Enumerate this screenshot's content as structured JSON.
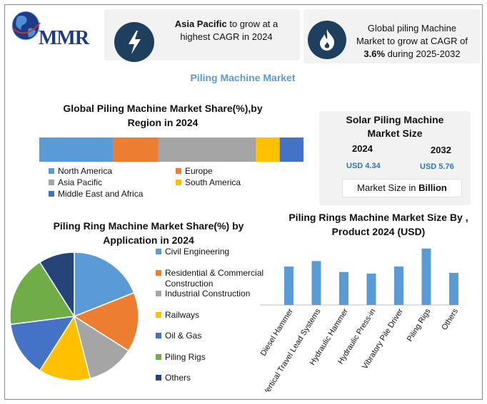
{
  "logo": {
    "text": "MMR"
  },
  "cards": {
    "card1": {
      "bold": "Asia Pacific",
      "rest1": " to grow at a",
      "line2": "highest CAGR in 2024"
    },
    "card2": {
      "line1": "Global piling Machine",
      "line2": "Market to grow at CAGR of",
      "bold": "3.6%",
      "rest3": " during 2025-2032"
    }
  },
  "main_title": "Piling Machine Market",
  "solar": {
    "title_line1": "Solar Piling Machine",
    "title_line2": "Market Size",
    "year1": "2024",
    "year2": "2032",
    "value1": "USD 4.34",
    "value2": "USD 5.76",
    "note_prefix": "Market Size in ",
    "note_bold": "Billion"
  },
  "colors": {
    "blue": "#5b9bd5",
    "orange": "#ed7d31",
    "gray": "#a5a5a5",
    "yellow": "#ffc000",
    "darkblue": "#4472c4",
    "green": "#70ad47",
    "navy": "#264478",
    "icon_bg": "#1f3f5f"
  },
  "icons": {
    "card1": "lightning-icon",
    "card2": "flame-icon",
    "logo": "globe-icon"
  },
  "chart_data": [
    {
      "type": "bar",
      "stacked": true,
      "orientation": "horizontal",
      "title_line1": "Global Piling Machine Market Share(%),by",
      "title_line2": "Region in 2024",
      "series": [
        {
          "name": "North America",
          "values": [
            28
          ],
          "color": "#5b9bd5"
        },
        {
          "name": "Europe",
          "values": [
            17
          ],
          "color": "#ed7d31"
        },
        {
          "name": "Asia Pacific",
          "values": [
            37
          ],
          "color": "#a5a5a5"
        },
        {
          "name": "South America",
          "values": [
            9
          ],
          "color": "#ffc000"
        },
        {
          "name": "Middle East and Africa",
          "values": [
            9
          ],
          "color": "#4472c4"
        }
      ],
      "legend": "bottom"
    },
    {
      "type": "pie",
      "title_line1": "Piling Ring Machine Market Share(%) by",
      "title_line2": "Application in 2024",
      "labels": [
        "Civil Engineering",
        "Residential & Commercial Construction",
        "Industrial Construction",
        "Railways",
        "Oil & Gas",
        "Piling Rigs",
        "Others"
      ],
      "legend_lines": [
        [
          "Civil Engineering"
        ],
        [
          "Residential & Commercial",
          "Construction"
        ],
        [
          "Industrial Construction"
        ],
        [
          "Railways"
        ],
        [
          "Oil & Gas"
        ],
        [
          "Piling Rigs"
        ],
        [
          "Others"
        ]
      ],
      "values": [
        19,
        15,
        12,
        13,
        14,
        18,
        9
      ],
      "colors": [
        "#5b9bd5",
        "#ed7d31",
        "#a5a5a5",
        "#ffc000",
        "#4472c4",
        "#70ad47",
        "#264478"
      ],
      "legend": "right"
    },
    {
      "type": "bar",
      "title_line1": "Piling Rings Machine Market Size By ,",
      "title_line2": "Product 2024  (USD)",
      "categories": [
        "Diesel Hammer",
        "Vertical Travel Lead Systems",
        "Hydraulic Hammer",
        "Hydraulic Press-in",
        "Vibratory Pile Driver",
        "Piling Rigs",
        "Others"
      ],
      "values": [
        49,
        56,
        42,
        40,
        49,
        72,
        41
      ],
      "ylim": [
        0,
        80
      ],
      "color": "#5b9bd5",
      "grid": false
    }
  ]
}
